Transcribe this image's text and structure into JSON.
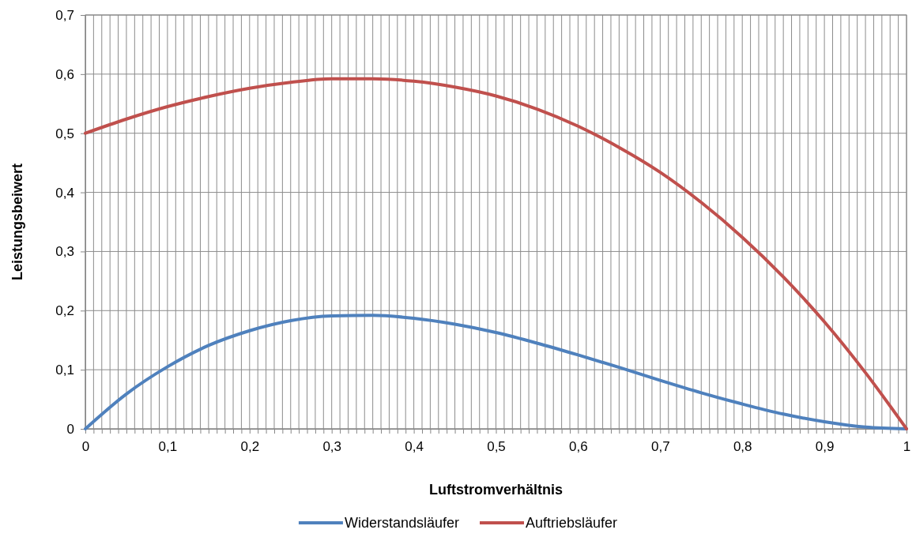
{
  "chart_data": {
    "type": "line",
    "xlabel": "Luftstromverhältnis",
    "ylabel": "Leistungsbeiwert",
    "x": [
      0,
      0.05,
      0.1,
      0.15,
      0.2,
      0.25,
      0.3,
      0.35,
      0.4,
      0.45,
      0.5,
      0.55,
      0.6,
      0.65,
      0.7,
      0.75,
      0.8,
      0.85,
      0.9,
      0.95,
      1
    ],
    "series": [
      {
        "name": "Widerstandsläufer",
        "color": "#4f81bd",
        "values": [
          0,
          0.059,
          0.105,
          0.141,
          0.166,
          0.183,
          0.191,
          0.192,
          0.187,
          0.177,
          0.163,
          0.145,
          0.125,
          0.104,
          0.082,
          0.061,
          0.042,
          0.025,
          0.012,
          0.003,
          0
        ]
      },
      {
        "name": "Auftriebsläufer",
        "color": "#c0504d",
        "values": [
          0.5,
          0.524,
          0.545,
          0.562,
          0.576,
          0.586,
          0.592,
          0.592,
          0.588,
          0.578,
          0.563,
          0.541,
          0.512,
          0.476,
          0.434,
          0.383,
          0.324,
          0.257,
          0.181,
          0.095,
          0
        ]
      }
    ],
    "xlim": [
      0,
      1
    ],
    "ylim": [
      0,
      0.7
    ],
    "xticks": [
      0,
      {
        "value": 0.01,
        "label": null
      },
      {
        "value": 0.02,
        "label": null
      },
      {
        "value": 0.03,
        "label": null
      },
      {
        "value": 0.04,
        "label": null
      },
      {
        "value": 0.05,
        "label": null
      },
      {
        "value": 0.06,
        "label": null
      },
      {
        "value": 0.07,
        "label": null
      },
      {
        "value": 0.08,
        "label": null
      },
      {
        "value": 0.09,
        "label": null
      },
      {
        "value": 0.1,
        "label": "0,1"
      },
      {
        "value": 0.11,
        "label": null
      },
      {
        "value": 0.12,
        "label": null
      },
      {
        "value": 0.13,
        "label": null
      },
      {
        "value": 0.14,
        "label": null
      },
      {
        "value": 0.15,
        "label": null
      },
      {
        "value": 0.16,
        "label": null
      },
      {
        "value": 0.17,
        "label": null
      },
      {
        "value": 0.18,
        "label": null
      },
      {
        "value": 0.19,
        "label": null
      },
      {
        "value": 0.2,
        "label": "0,2"
      },
      {
        "value": 0.21,
        "label": null
      },
      {
        "value": 0.22,
        "label": null
      },
      {
        "value": 0.23,
        "label": null
      },
      {
        "value": 0.24,
        "label": null
      },
      {
        "value": 0.25,
        "label": null
      },
      {
        "value": 0.26,
        "label": null
      },
      {
        "value": 0.27,
        "label": null
      },
      {
        "value": 0.28,
        "label": null
      },
      {
        "value": 0.29,
        "label": null
      },
      {
        "value": 0.3,
        "label": "0,3"
      },
      {
        "value": 0.31,
        "label": null
      },
      {
        "value": 0.32,
        "label": null
      },
      {
        "value": 0.33,
        "label": null
      },
      {
        "value": 0.34,
        "label": null
      },
      {
        "value": 0.35,
        "label": null
      },
      {
        "value": 0.36,
        "label": null
      },
      {
        "value": 0.37,
        "label": null
      },
      {
        "value": 0.38,
        "label": null
      },
      {
        "value": 0.39,
        "label": null
      },
      {
        "value": 0.4,
        "label": "0,4"
      },
      {
        "value": 0.41,
        "label": null
      },
      {
        "value": 0.42,
        "label": null
      },
      {
        "value": 0.43,
        "label": null
      },
      {
        "value": 0.44,
        "label": null
      },
      {
        "value": 0.45,
        "label": null
      },
      {
        "value": 0.46,
        "label": null
      },
      {
        "value": 0.47,
        "label": null
      },
      {
        "value": 0.48,
        "label": null
      },
      {
        "value": 0.49,
        "label": null
      },
      {
        "value": 0.5,
        "label": "0,5"
      },
      {
        "value": 0.51,
        "label": null
      },
      {
        "value": 0.52,
        "label": null
      },
      {
        "value": 0.53,
        "label": null
      },
      {
        "value": 0.54,
        "label": null
      },
      {
        "value": 0.55,
        "label": null
      },
      {
        "value": 0.56,
        "label": null
      },
      {
        "value": 0.57,
        "label": null
      },
      {
        "value": 0.58,
        "label": null
      },
      {
        "value": 0.59,
        "label": null
      },
      {
        "value": 0.6,
        "label": "0,6"
      },
      {
        "value": 0.61,
        "label": null
      },
      {
        "value": 0.62,
        "label": null
      },
      {
        "value": 0.63,
        "label": null
      },
      {
        "value": 0.64,
        "label": null
      },
      {
        "value": 0.65,
        "label": null
      },
      {
        "value": 0.66,
        "label": null
      },
      {
        "value": 0.67,
        "label": null
      },
      {
        "value": 0.68,
        "label": null
      },
      {
        "value": 0.69,
        "label": null
      },
      {
        "value": 0.7,
        "label": "0,7"
      },
      {
        "value": 0.71,
        "label": null
      },
      {
        "value": 0.72,
        "label": null
      },
      {
        "value": 0.73,
        "label": null
      },
      {
        "value": 0.74,
        "label": null
      },
      {
        "value": 0.75,
        "label": null
      },
      {
        "value": 0.76,
        "label": null
      },
      {
        "value": 0.77,
        "label": null
      },
      {
        "value": 0.78,
        "label": null
      },
      {
        "value": 0.79,
        "label": null
      },
      {
        "value": 0.8,
        "label": "0,8"
      },
      {
        "value": 0.81,
        "label": null
      },
      {
        "value": 0.82,
        "label": null
      },
      {
        "value": 0.83,
        "label": null
      },
      {
        "value": 0.84,
        "label": null
      },
      {
        "value": 0.85,
        "label": null
      },
      {
        "value": 0.86,
        "label": null
      },
      {
        "value": 0.87,
        "label": null
      },
      {
        "value": 0.88,
        "label": null
      },
      {
        "value": 0.89,
        "label": null
      },
      {
        "value": 0.9,
        "label": "0,9"
      },
      {
        "value": 0.91,
        "label": null
      },
      {
        "value": 0.92,
        "label": null
      },
      {
        "value": 0.93,
        "label": null
      },
      {
        "value": 0.94,
        "label": null
      },
      {
        "value": 0.95,
        "label": null
      },
      {
        "value": 0.96,
        "label": null
      },
      {
        "value": 0.97,
        "label": null
      },
      {
        "value": 0.98,
        "label": null
      },
      {
        "value": 0.99,
        "label": null
      },
      1
    ],
    "yticks": [
      0,
      {
        "value": 0.1,
        "label": "0,1"
      },
      {
        "value": 0.2,
        "label": "0,2"
      },
      {
        "value": 0.3,
        "label": "0,3"
      },
      {
        "value": 0.4,
        "label": "0,4"
      },
      {
        "value": 0.5,
        "label": "0,5"
      },
      {
        "value": 0.6,
        "label": "0,6"
      },
      {
        "value": 0.7,
        "label": "0,7"
      }
    ],
    "grid": true,
    "legend": "bottom",
    "marker": "none",
    "line_style": "solid"
  }
}
